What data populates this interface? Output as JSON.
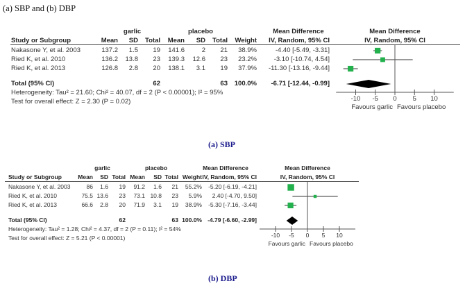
{
  "figure_title": "(a) SBP and (b) DBP",
  "colors": {
    "marker": "#22b14c",
    "line": "#333333",
    "caption": "#1a1a8c"
  },
  "chart_data": [
    {
      "type": "forest",
      "caption": "(a) SBP",
      "headers": {
        "group1": "garlic",
        "group2": "placebo",
        "study": "Study or Subgroup",
        "mean": "Mean",
        "sd": "SD",
        "total": "Total",
        "weight": "Weight",
        "md_title": "Mean Difference",
        "md_sub": "IV, Random, 95% CI",
        "plot_title": "Mean Difference",
        "plot_sub": "IV, Random, 95% CI"
      },
      "studies": [
        {
          "name": "Nakasone Y, et al. 2003",
          "g_mean": "137.2",
          "g_sd": "1.5",
          "g_total": "19",
          "p_mean": "141.6",
          "p_sd": "2",
          "p_total": "21",
          "weight": "38.9%",
          "ci_text": "-4.40 [-5.49, -3.31]",
          "md": -4.4,
          "lo": -5.49,
          "hi": -3.31,
          "w": 38.9
        },
        {
          "name": "Ried K, et al. 2010",
          "g_mean": "136.2",
          "g_sd": "13.8",
          "g_total": "23",
          "p_mean": "139.3",
          "p_sd": "12.6",
          "p_total": "23",
          "weight": "23.2%",
          "ci_text": "-3.10 [-10.74, 4.54]",
          "md": -3.1,
          "lo": -10.74,
          "hi": 4.54,
          "w": 23.2
        },
        {
          "name": "Ried K, et al. 2013",
          "g_mean": "126.8",
          "g_sd": "2.8",
          "g_total": "20",
          "p_mean": "138.1",
          "p_sd": "3.1",
          "p_total": "19",
          "weight": "37.9%",
          "ci_text": "-11.30 [-13.16, -9.44]",
          "md": -11.3,
          "lo": -13.16,
          "hi": -9.44,
          "w": 37.9
        }
      ],
      "total": {
        "label": "Total (95% CI)",
        "g_total": "62",
        "p_total": "63",
        "weight": "100.0%",
        "ci_text": "-6.71 [-12.44, -0.99]",
        "md": -6.71,
        "lo": -12.44,
        "hi": -0.99
      },
      "heterogeneity": "Heterogeneity: Tau² = 21.60; Chi² = 40.07, df = 2 (P < 0.00001); I² = 95%",
      "overall_effect": "Test for overall effect: Z = 2.30 (P = 0.02)",
      "xaxis": {
        "ticks": [
          "-10",
          "-5",
          "0",
          "5",
          "10"
        ],
        "tick_values": [
          -10,
          -5,
          0,
          5,
          10
        ],
        "range": [
          -15,
          15
        ],
        "left_label": "Favours garlic",
        "right_label": "Favours placebo"
      }
    },
    {
      "type": "forest",
      "caption": "(b) DBP",
      "headers": {
        "group1": "garlic",
        "group2": "placebo",
        "study": "Study or Subgroup",
        "mean": "Mean",
        "sd": "SD",
        "total": "Total",
        "weight": "Weight",
        "md_title": "Mean Difference",
        "md_sub": "IV, Random, 95% CI",
        "plot_title": "Mean Difference",
        "plot_sub": "IV, Random, 95% CI"
      },
      "studies": [
        {
          "name": "Nakasone Y, et al. 2003",
          "g_mean": "86",
          "g_sd": "1.6",
          "g_total": "19",
          "p_mean": "91.2",
          "p_sd": "1.6",
          "p_total": "21",
          "weight": "55.2%",
          "ci_text": "-5.20 [-6.19, -4.21]",
          "md": -5.2,
          "lo": -6.19,
          "hi": -4.21,
          "w": 55.2
        },
        {
          "name": "Ried K, et al. 2010",
          "g_mean": "75.5",
          "g_sd": "13.6",
          "g_total": "23",
          "p_mean": "73.1",
          "p_sd": "10.8",
          "p_total": "23",
          "weight": "5.9%",
          "ci_text": "2.40 [-4.70, 9.50]",
          "md": 2.4,
          "lo": -4.7,
          "hi": 9.5,
          "w": 5.9
        },
        {
          "name": "Ried K, et al. 2013",
          "g_mean": "66.6",
          "g_sd": "2.8",
          "g_total": "20",
          "p_mean": "71.9",
          "p_sd": "3.1",
          "p_total": "19",
          "weight": "38.9%",
          "ci_text": "-5.30 [-7.16, -3.44]",
          "md": -5.3,
          "lo": -7.16,
          "hi": -3.44,
          "w": 38.9
        }
      ],
      "total": {
        "label": "Total (95% CI)",
        "g_total": "62",
        "p_total": "63",
        "weight": "100.0%",
        "ci_text": "-4.79 [-6.60, -2.99]",
        "md": -4.79,
        "lo": -6.6,
        "hi": -2.99
      },
      "heterogeneity": "Heterogeneity: Tau² = 1.28; Chi² = 4.37, df = 2 (P = 0.11); I² = 54%",
      "overall_effect": "Test for overall effect: Z = 5.21 (P < 0.00001)",
      "xaxis": {
        "ticks": [
          "-10",
          "-5",
          "0",
          "5",
          "10"
        ],
        "tick_values": [
          -10,
          -5,
          0,
          5,
          10
        ],
        "range": [
          -15,
          15
        ],
        "left_label": "Favours garlic",
        "right_label": "Favours placebo"
      }
    }
  ]
}
